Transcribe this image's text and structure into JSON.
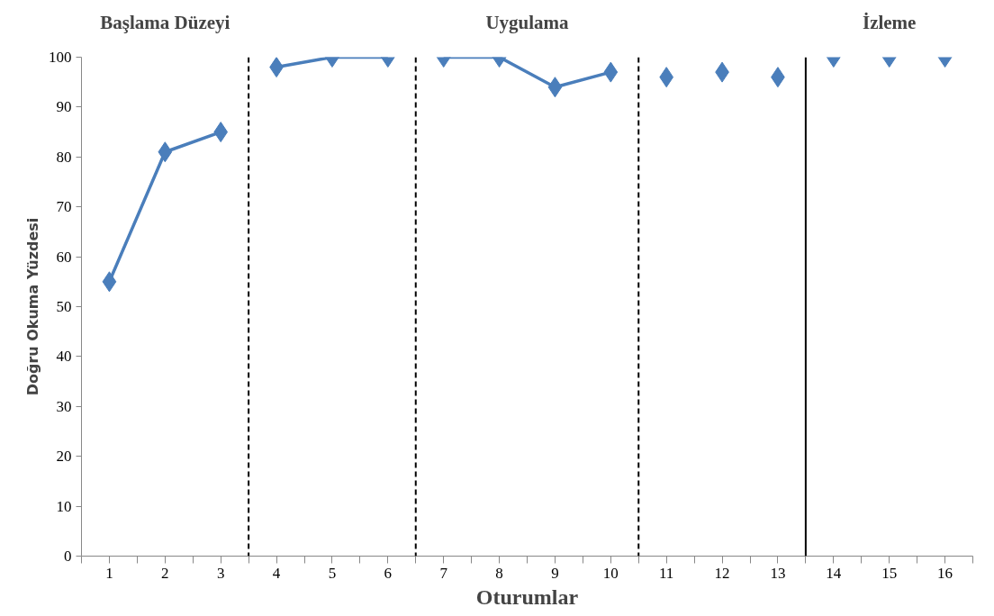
{
  "chart_data": {
    "type": "line",
    "xlabel": "Oturumlar",
    "ylabel": "Doğru Okuma Yüzdesi",
    "annotations": [
      "Başlama Düzeyi",
      "Uygulama",
      "İzleme"
    ],
    "x": [
      1,
      2,
      3,
      4,
      5,
      6,
      7,
      8,
      9,
      10,
      11,
      12,
      13,
      14,
      15,
      16
    ],
    "series": [
      {
        "color": "#4a7ebb",
        "values": [
          55,
          81,
          85,
          null,
          null,
          null,
          null,
          null,
          null,
          null,
          null,
          null,
          null,
          null,
          null,
          null
        ]
      },
      {
        "color": "#4a7ebb",
        "values": [
          null,
          null,
          null,
          98,
          100,
          100,
          null,
          null,
          null,
          null,
          null,
          null,
          null,
          null,
          null,
          null
        ]
      },
      {
        "color": "#4a7ebb",
        "values": [
          null,
          null,
          null,
          null,
          null,
          null,
          100,
          100,
          94,
          97,
          null,
          null,
          null,
          null,
          null,
          null
        ]
      },
      {
        "type": "scatter",
        "color": "#4a7ebb",
        "values": [
          null,
          null,
          null,
          null,
          null,
          null,
          null,
          null,
          null,
          null,
          96,
          97,
          96,
          null,
          null,
          null
        ]
      },
      {
        "type": "scatter",
        "color": "#4a7ebb",
        "values": [
          null,
          null,
          null,
          null,
          null,
          null,
          null,
          null,
          null,
          null,
          null,
          null,
          null,
          100,
          100,
          100
        ]
      }
    ],
    "marker": "diamond",
    "line_style": "solid",
    "grid": false,
    "xlim": [
      0.5,
      16.5
    ],
    "xticks": [
      1,
      2,
      3,
      4,
      5,
      6,
      7,
      8,
      9,
      10,
      11,
      12,
      13,
      14,
      15,
      16,
      {
        "value": 0.5,
        "label": null
      },
      {
        "value": 1.5,
        "label": null
      },
      {
        "value": 2.5,
        "label": null
      },
      {
        "value": 3.5,
        "label": null
      },
      {
        "value": 4.5,
        "label": null
      },
      {
        "value": 5.5,
        "label": null
      },
      {
        "value": 6.5,
        "label": null
      },
      {
        "value": 7.5,
        "label": null
      },
      {
        "value": 8.5,
        "label": null
      },
      {
        "value": 9.5,
        "label": null
      },
      {
        "value": 10.5,
        "label": null
      },
      {
        "value": 11.5,
        "label": null
      },
      {
        "value": 12.5,
        "label": null
      },
      {
        "value": 13.5,
        "label": null
      },
      {
        "value": 14.5,
        "label": null
      },
      {
        "value": 15.5,
        "label": null
      },
      {
        "value": 16.5,
        "label": null
      }
    ],
    "ylim": [
      0,
      100
    ],
    "yticks": [
      0,
      10,
      20,
      30,
      40,
      50,
      60,
      70,
      80,
      90,
      100
    ],
    "ref_lines": [
      {
        "axis": "x",
        "value": 3.5,
        "line_style": "dashed",
        "color": "#000000"
      },
      {
        "axis": "x",
        "value": 6.5,
        "line_style": "dashed",
        "color": "#000000"
      },
      {
        "axis": "x",
        "value": 10.5,
        "line_style": "dashed",
        "color": "#000000"
      },
      {
        "axis": "x",
        "value": 13.5,
        "line_style": "solid",
        "color": "#000000"
      }
    ]
  }
}
